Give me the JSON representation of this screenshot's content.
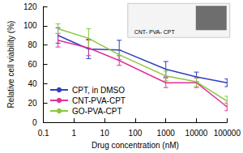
{
  "chart_data": {
    "type": "line",
    "x_label": "Drug concentration (nM)",
    "y_label": "Relative cell viability (%)",
    "annotation": "CNT- PVA- CPT",
    "x": [
      0.3,
      3,
      30,
      1000,
      10000,
      100000
    ],
    "series": [
      {
        "name": "CPT, in DMSO",
        "color": "#2f3fbf",
        "values": [
          90,
          76,
          75,
          55,
          47,
          41
        ],
        "errors": [
          8,
          10,
          10,
          8,
          5,
          4
        ]
      },
      {
        "name": "CNT-PVA-CPT",
        "color": "#e0309a",
        "values": [
          85,
          77,
          64,
          41,
          41,
          16
        ],
        "errors": [
          7,
          8,
          5,
          5,
          5,
          4
        ]
      },
      {
        "name": "GO-PVA-CPT",
        "color": "#8cc63f",
        "values": [
          97,
          87,
          70,
          48,
          42,
          22
        ],
        "errors": [
          5,
          10,
          5,
          5,
          5,
          5
        ]
      }
    ],
    "xlim": [
      0.1,
      100000
    ],
    "xticks": [
      0.1,
      1,
      10,
      100,
      1000,
      10000,
      100000
    ],
    "ylim": [
      0,
      120
    ],
    "yticks": [
      0,
      20,
      40,
      60,
      80,
      100,
      120
    ],
    "log": "x",
    "grid": false,
    "legend": "lower left",
    "marker": "none"
  }
}
